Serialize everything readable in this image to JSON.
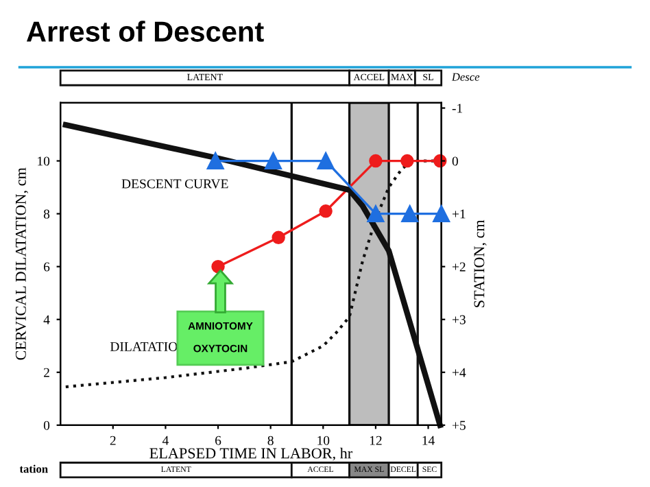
{
  "chart_data": {
    "type": "line",
    "title": "Arrest of Descent",
    "xlabel": "ELAPSED TIME IN LABOR, hr",
    "ylabel": "CERVICAL DILATATION, cm",
    "y2label": "STATION, cm",
    "xlim": [
      0,
      14.5
    ],
    "xticks": [
      2,
      4,
      6,
      8,
      10,
      12,
      14
    ],
    "ylim": [
      0,
      12.2
    ],
    "yticks": [
      0,
      2,
      4,
      6,
      8,
      10
    ],
    "y2lim": [
      5,
      -1.1
    ],
    "y2ticks": [
      {
        "value": -1,
        "label": "-1"
      },
      0,
      {
        "value": 1,
        "label": "+1"
      },
      {
        "value": 2,
        "label": "+2"
      },
      {
        "value": 3,
        "label": "+3"
      },
      {
        "value": 4,
        "label": "+4"
      },
      {
        "value": 5,
        "label": "+5"
      }
    ],
    "grid": false,
    "series": [
      {
        "color": "#111111",
        "axis": "y2",
        "line_style": "solid",
        "marker": "none",
        "x": [
          0.2,
          6,
          11,
          11.5,
          12.5,
          14.45
        ],
        "values": [
          -0.68,
          -0.05,
          0.55,
          0.85,
          1.7,
          5
        ]
      },
      {
        "color": "#111111",
        "axis": "y",
        "line_style": "dotted",
        "marker": "none",
        "x": [
          0.2,
          4,
          7,
          8.8,
          10,
          10.5,
          11,
          11.5,
          12,
          12.5,
          13,
          13.4,
          14.5
        ],
        "values": [
          1.45,
          1.8,
          2.15,
          2.4,
          3.0,
          3.5,
          4.1,
          6.2,
          7.8,
          9,
          9.7,
          10,
          10
        ]
      },
      {
        "color": "#ee1c1c",
        "axis": "y",
        "line_style": "solid",
        "marker": "circle",
        "x": [
          6,
          8.3,
          10.1,
          12,
          13.2,
          14.45
        ],
        "values": [
          6,
          7.1,
          8.1,
          10,
          10,
          10
        ]
      },
      {
        "color": "#1f6fe0",
        "axis": "y2",
        "line_style": "solid",
        "marker": "triangle",
        "x": [
          5.9,
          8.1,
          10.1,
          12,
          13.3,
          14.5
        ],
        "values": [
          0,
          0,
          0,
          1,
          1,
          1
        ]
      }
    ],
    "ref_lines": [
      {
        "axis": "x",
        "value": 8.8,
        "color": "#111111"
      },
      {
        "axis": "x",
        "value": 13.6,
        "color": "#111111"
      }
    ],
    "bands": [
      {
        "axis": "x",
        "from": 11.0,
        "to": 12.5,
        "color": "#bdbdbd"
      }
    ],
    "annotations": [
      "DESCENT CURVE",
      "DILATATIO",
      "AMNIOTOMY\n\nOXYTOCIN",
      "LATENT",
      "ACCEL",
      "MAX",
      "SL",
      "Desce",
      "tation",
      "LATENT",
      "ACCEL",
      "MAX SL",
      "DECEL",
      "SEC"
    ]
  }
}
